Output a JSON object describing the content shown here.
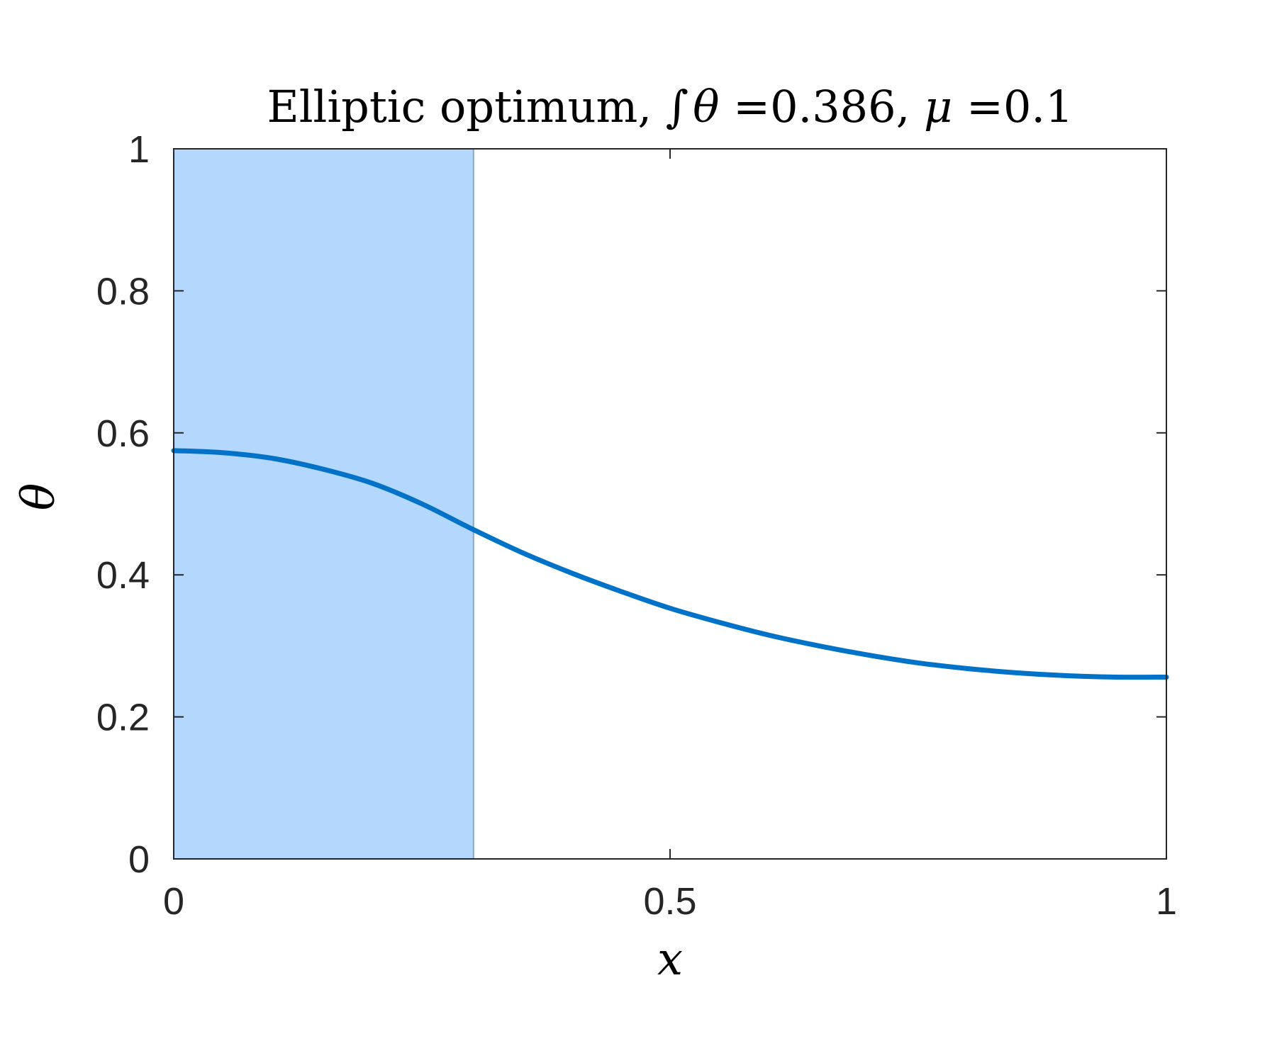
{
  "chart_data": {
    "type": "line",
    "title": {
      "prefix": "Elliptic optimum, ",
      "integral_symbol": "∫",
      "integrand": "θ",
      "equals1": " =",
      "integral_value": "0.386",
      "separator": ", ",
      "param_symbol": "μ",
      "equals2": " =",
      "param_value": "0.1"
    },
    "xlabel": "x",
    "ylabel": "θ",
    "xlim": [
      0,
      1
    ],
    "ylim": [
      0,
      1
    ],
    "xticks": [
      {
        "value": 0,
        "label": "0"
      },
      {
        "value": 0.5,
        "label": "0.5"
      },
      {
        "value": 1,
        "label": "1"
      }
    ],
    "yticks": [
      {
        "value": 0,
        "label": "0"
      },
      {
        "value": 0.2,
        "label": "0.2"
      },
      {
        "value": 0.4,
        "label": "0.4"
      },
      {
        "value": 0.6,
        "label": "0.6"
      },
      {
        "value": 0.8,
        "label": "0.8"
      },
      {
        "value": 1,
        "label": "1"
      }
    ],
    "grid": false,
    "shaded_region": {
      "x_start": 0,
      "x_end": 0.302,
      "color": "#b3d7fd",
      "edge_color": "#8ea6c0"
    },
    "series": [
      {
        "color": "#0072c7",
        "x": [
          0,
          0.05,
          0.1,
          0.15,
          0.2,
          0.25,
          0.3,
          0.35,
          0.4,
          0.45,
          0.5,
          0.55,
          0.6,
          0.65,
          0.7,
          0.75,
          0.8,
          0.85,
          0.9,
          0.95,
          1
        ],
        "y": [
          0.575,
          0.572,
          0.564,
          0.549,
          0.529,
          0.5,
          0.465,
          0.432,
          0.403,
          0.377,
          0.353,
          0.333,
          0.315,
          0.3,
          0.287,
          0.276,
          0.268,
          0.262,
          0.258,
          0.256,
          0.256
        ]
      }
    ]
  }
}
